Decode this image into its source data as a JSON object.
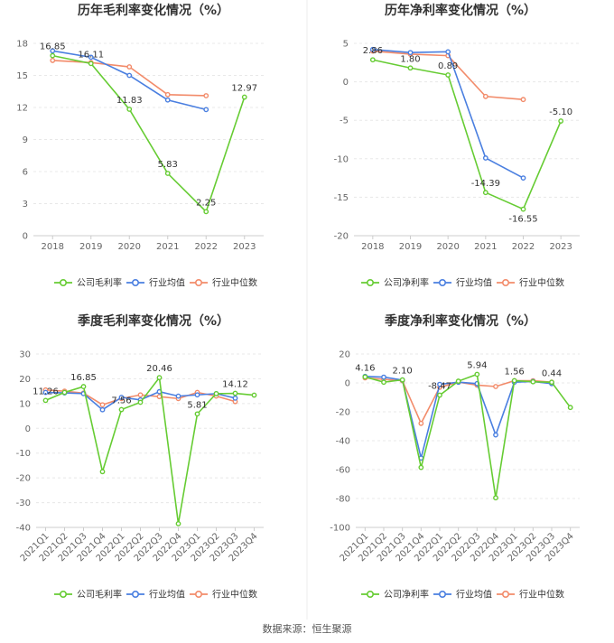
{
  "source": "数据来源：恒生聚源",
  "chart_data": [
    {
      "type": "line",
      "title": "历年毛利率变化情况（%）",
      "categories": [
        "2018",
        "2019",
        "2020",
        "2021",
        "2022",
        "2023"
      ],
      "ylim": [
        0,
        18
      ],
      "yticks": [
        0,
        3,
        6,
        9,
        12,
        15,
        18
      ],
      "series": [
        {
          "name": "公司毛利率",
          "color": "#66cc33",
          "values": [
            16.85,
            16.11,
            11.83,
            5.83,
            2.25,
            12.97
          ],
          "labels": [
            "16.85",
            "16.11",
            "11.83",
            "5.83",
            "2.25",
            "12.97"
          ]
        },
        {
          "name": "行业均值",
          "color": "#4a7fe0",
          "values": [
            17.3,
            16.7,
            15.0,
            12.7,
            11.8,
            null
          ]
        },
        {
          "name": "行业中位数",
          "color": "#f28b6a",
          "values": [
            16.4,
            16.2,
            15.8,
            13.2,
            13.1,
            null
          ]
        }
      ]
    },
    {
      "type": "line",
      "title": "历年净利率变化情况（%）",
      "categories": [
        "2018",
        "2019",
        "2020",
        "2021",
        "2022",
        "2023"
      ],
      "ylim": [
        -20,
        5
      ],
      "yticks": [
        -20,
        -15,
        -10,
        -5,
        0,
        5
      ],
      "series": [
        {
          "name": "公司净利率",
          "color": "#66cc33",
          "values": [
            2.86,
            1.8,
            0.89,
            -14.39,
            -16.55,
            -5.1
          ],
          "labels": [
            "2.86",
            "1.80",
            "0.89",
            "-14.39",
            "-16.55",
            "-5.10"
          ]
        },
        {
          "name": "行业均值",
          "color": "#4a7fe0",
          "values": [
            4.2,
            3.8,
            3.9,
            -9.9,
            -12.5,
            null
          ]
        },
        {
          "name": "行业中位数",
          "color": "#f28b6a",
          "values": [
            4.0,
            3.6,
            3.4,
            -1.9,
            -2.3,
            null
          ]
        }
      ]
    },
    {
      "type": "line",
      "title": "季度毛利率变化情况（%）",
      "categories": [
        "2021Q1",
        "2021Q2",
        "2021Q3",
        "2021Q4",
        "2022Q1",
        "2022Q2",
        "2022Q3",
        "2022Q4",
        "2023Q1",
        "2023Q2",
        "2023Q3",
        "2023Q4"
      ],
      "ylim": [
        -40,
        30
      ],
      "yticks": [
        -40,
        -30,
        -20,
        -10,
        0,
        10,
        20,
        30
      ],
      "series": [
        {
          "name": "公司毛利率",
          "color": "#66cc33",
          "values": [
            11.26,
            14.5,
            16.85,
            -17.5,
            7.56,
            10.5,
            20.46,
            -38.5,
            5.81,
            14.0,
            14.12,
            13.4
          ],
          "labels": [
            "11.26",
            "",
            "16.85",
            "",
            "7.56",
            "",
            "20.46",
            "",
            "5.81",
            "",
            "14.12",
            ""
          ]
        },
        {
          "name": "行业均值",
          "color": "#4a7fe0",
          "values": [
            14.5,
            14.3,
            14.0,
            7.5,
            12.5,
            11.5,
            14.8,
            13.0,
            13.5,
            14.0,
            12.2,
            null
          ]
        },
        {
          "name": "行业中位数",
          "color": "#f28b6a",
          "values": [
            15.5,
            15.0,
            14.2,
            9.5,
            12.0,
            13.5,
            12.8,
            12.0,
            14.5,
            13.0,
            10.8,
            null
          ]
        }
      ]
    },
    {
      "type": "line",
      "title": "季度净利率变化情况（%）",
      "categories": [
        "2021Q1",
        "2021Q2",
        "2021Q3",
        "2021Q4",
        "2022Q1",
        "2022Q2",
        "2022Q3",
        "2022Q4",
        "2023Q1",
        "2023Q2",
        "2023Q3",
        "2023Q4"
      ],
      "ylim": [
        -100,
        20
      ],
      "yticks": [
        -100,
        -80,
        -60,
        -40,
        -20,
        0,
        20
      ],
      "series": [
        {
          "name": "公司净利率",
          "color": "#66cc33",
          "values": [
            4.16,
            0.5,
            2.1,
            -58.5,
            -8.47,
            1.2,
            5.94,
            -79.5,
            1.56,
            0.8,
            0.44,
            -17.0
          ],
          "labels": [
            "4.16",
            "",
            "2.10",
            "",
            "-8.47",
            "",
            "5.94",
            "",
            "1.56",
            "",
            "0.44",
            ""
          ]
        },
        {
          "name": "行业均值",
          "color": "#4a7fe0",
          "values": [
            4.5,
            4.0,
            2.0,
            -52.0,
            -1.0,
            0.5,
            -0.5,
            -36.0,
            0.5,
            1.0,
            -0.5,
            null
          ]
        },
        {
          "name": "行业中位数",
          "color": "#f28b6a",
          "values": [
            3.5,
            2.5,
            1.5,
            -28.0,
            -3.0,
            0.5,
            -1.5,
            -2.5,
            1.5,
            1.5,
            0.5,
            null
          ]
        }
      ]
    }
  ]
}
